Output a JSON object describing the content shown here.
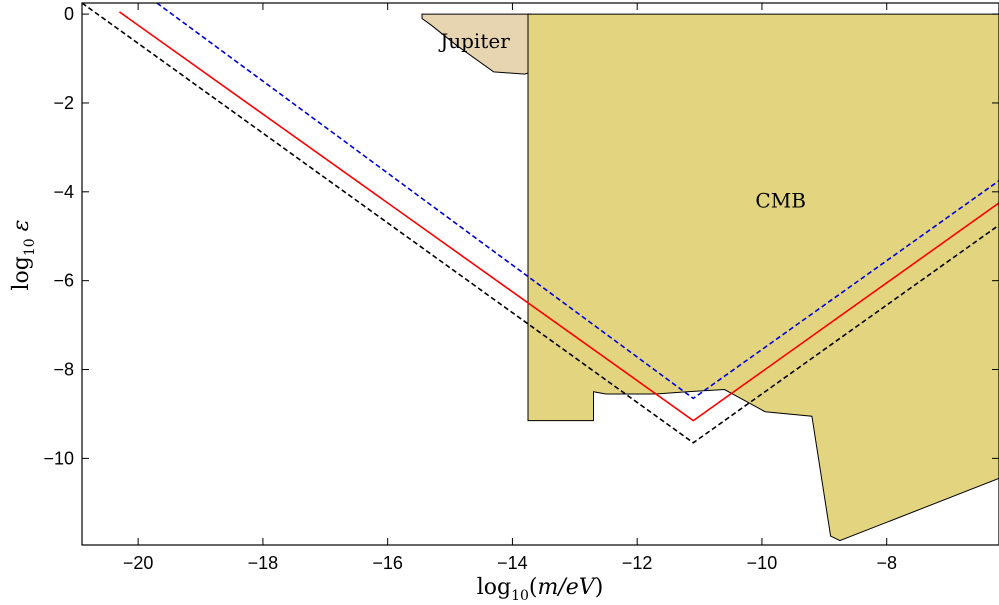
{
  "chart_data": {
    "type": "line",
    "title": "",
    "xlabel": "log10(m/eV)",
    "ylabel": "log10 ε",
    "xlim": [
      -20.9,
      -6.2
    ],
    "ylim": [
      -11.95,
      0.25
    ],
    "x_ticks": [
      -20,
      -18,
      -16,
      -14,
      -12,
      -10,
      -8
    ],
    "y_ticks": [
      0,
      -2,
      -4,
      -6,
      -8,
      -10
    ],
    "x_tick_labels": [
      "−20",
      "−18",
      "−16",
      "−14",
      "−12",
      "−10",
      "−8"
    ],
    "y_tick_labels": [
      "0",
      "−2",
      "−4",
      "−6",
      "−8",
      "−10"
    ],
    "grid": false,
    "series": [
      {
        "color": "#0000dd",
        "style": "dashed",
        "x": [
          -19.7,
          -11.1,
          -6.2
        ],
        "y": [
          0.25,
          -8.65,
          -3.75
        ]
      },
      {
        "color": "#ff0000",
        "style": "solid",
        "x": [
          -20.3,
          -11.1,
          -6.2
        ],
        "y": [
          0.05,
          -9.15,
          -4.25
        ]
      },
      {
        "color": "#000000",
        "style": "dashed",
        "x": [
          -20.9,
          -11.1,
          -6.2
        ],
        "y": [
          0.25,
          -9.65,
          -4.75
        ]
      }
    ],
    "regions": [
      {
        "label": "Jupiter",
        "color": "#e6d5b0",
        "x": [
          -15.45,
          -13.7,
          -13.7,
          -13.8,
          -14.3,
          -14.9,
          -15.3,
          -15.45
        ],
        "y": [
          0.0,
          0.0,
          -1.3,
          -1.35,
          -1.3,
          -0.7,
          -0.25,
          -0.1
        ]
      },
      {
        "label": "CMB",
        "color": "#e3d580",
        "x": [
          -13.7,
          -6.2,
          -6.2,
          -8.75,
          -8.9,
          -9.2,
          -9.95,
          -10.6,
          -11.2,
          -11.7,
          -12.5,
          -12.7,
          -12.7,
          -13.75,
          -13.75
        ],
        "y": [
          0.0,
          0.0,
          -10.45,
          -11.85,
          -11.75,
          -9.05,
          -8.95,
          -8.45,
          -8.5,
          -8.55,
          -8.55,
          -8.5,
          -9.15,
          -9.15,
          0.0
        ]
      }
    ]
  }
}
